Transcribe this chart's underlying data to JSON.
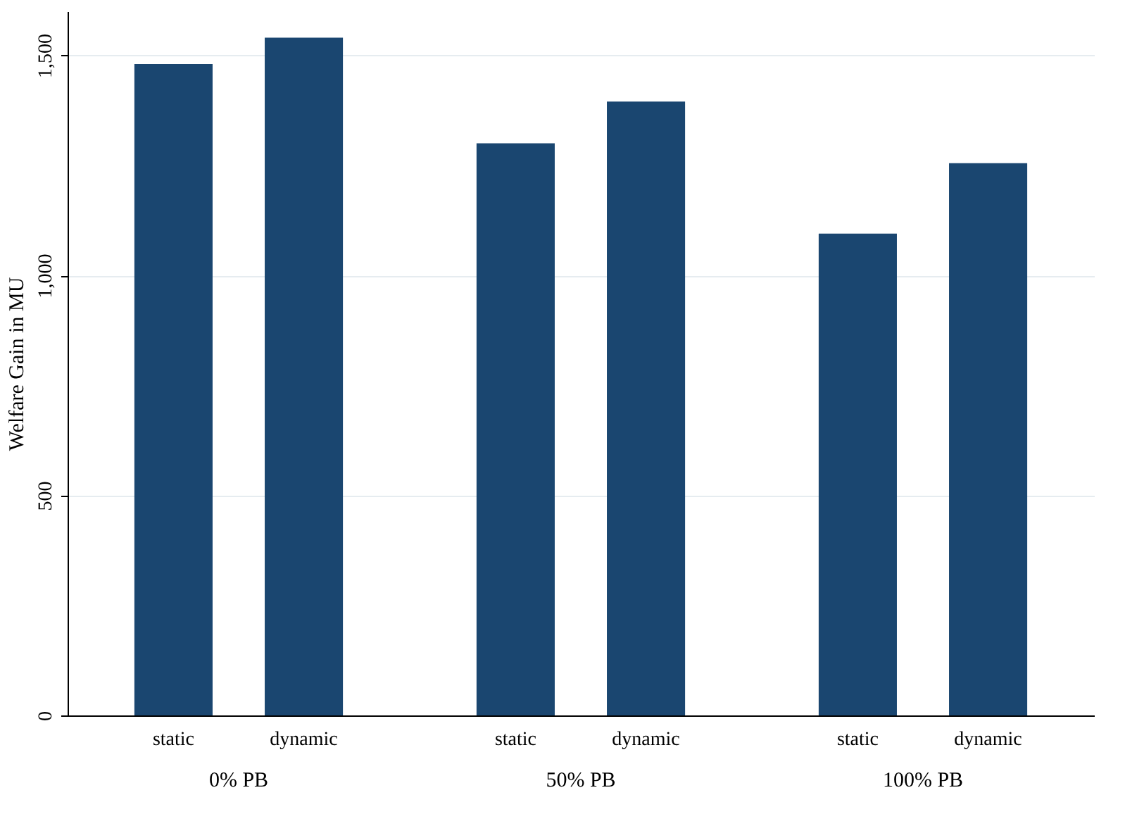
{
  "chart_data": {
    "type": "bar",
    "categories": [
      "0% PB",
      "50% PB",
      "100% PB"
    ],
    "ylabel": "Welfare Gain in MU",
    "ylim": [
      0,
      1600
    ],
    "yticks": [
      {
        "value": 0,
        "label": "0"
      },
      {
        "value": 500,
        "label": "500"
      },
      {
        "value": 1000,
        "label": "1,000"
      },
      {
        "value": 1500,
        "label": "1,500"
      }
    ],
    "grid": "y",
    "series": [
      {
        "name": "static",
        "color": "#1a4670",
        "values": [
          1480,
          1300,
          1095
        ]
      },
      {
        "name": "dynamic",
        "color": "#1a4670",
        "values": [
          1540,
          1395,
          1255
        ]
      }
    ]
  }
}
